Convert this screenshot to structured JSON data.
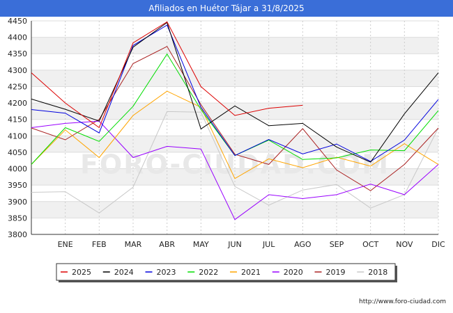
{
  "title": "Afiliados en Huétor Tájar a 31/8/2025",
  "footer_url": "http://www.foro-ciudad.com",
  "watermark": "FORO-CIUDAD.COM",
  "chart_data": {
    "type": "line",
    "categories": [
      "",
      "ENE",
      "FEB",
      "MAR",
      "ABR",
      "MAY",
      "JUN",
      "JUL",
      "AGO",
      "SEP",
      "OCT",
      "NOV",
      "DIC"
    ],
    "ylim": [
      3800,
      4450
    ],
    "yticks": [
      3800,
      3850,
      3900,
      3950,
      4000,
      4050,
      4100,
      4150,
      4200,
      4250,
      4300,
      4350,
      4400,
      4450
    ],
    "grid": true,
    "legend_position": "bottom",
    "series": [
      {
        "name": "2025",
        "color": "#dd0000",
        "values": [
          4292,
          4200,
          4125,
          4383,
          4447,
          4250,
          4162,
          4184,
          4193,
          null,
          null,
          null,
          null
        ]
      },
      {
        "name": "2024",
        "color": "#000000",
        "values": [
          4212,
          4181,
          4145,
          4370,
          4445,
          4121,
          4191,
          4131,
          4138,
          4066,
          4020,
          4167,
          4292
        ]
      },
      {
        "name": "2023",
        "color": "#0000dd",
        "values": [
          4180,
          4169,
          4109,
          4375,
          4437,
          4187,
          4040,
          4089,
          4045,
          4075,
          4022,
          4087,
          4211
        ]
      },
      {
        "name": "2022",
        "color": "#00dd00",
        "values": [
          4013,
          4125,
          4083,
          4190,
          4349,
          4180,
          4040,
          4087,
          4028,
          4033,
          4057,
          4055,
          4177
        ]
      },
      {
        "name": "2021",
        "color": "#ffa500",
        "values": [
          4013,
          4118,
          4034,
          4162,
          4236,
          4187,
          3970,
          4030,
          4003,
          4035,
          4008,
          4076,
          4013
        ]
      },
      {
        "name": "2020",
        "color": "#9900ff",
        "values": [
          4125,
          4138,
          4145,
          4034,
          4068,
          4060,
          3845,
          3921,
          3909,
          3921,
          3953,
          3921,
          4013
        ]
      },
      {
        "name": "2019",
        "color": "#aa2222",
        "values": [
          4124,
          4088,
          4150,
          4320,
          4372,
          4195,
          4044,
          4013,
          4122,
          3996,
          3933,
          4013,
          4124
        ]
      },
      {
        "name": "2018",
        "color": "#c8c8c8",
        "values": [
          3928,
          3930,
          3865,
          3944,
          4174,
          4172,
          3946,
          3889,
          3935,
          3952,
          3880,
          3921,
          4124
        ]
      }
    ]
  }
}
